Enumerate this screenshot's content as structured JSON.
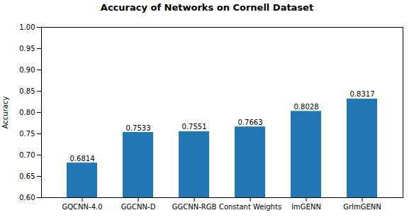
{
  "chart_data": {
    "type": "bar",
    "title": "Accuracy of Networks on Cornell Dataset",
    "ylabel": "Accuracy",
    "categories": [
      "GQCNN-4.0",
      "GGCNN-D",
      "GGCNN-RGB",
      "Constant Weights",
      "ImGENN",
      "GrImGENN"
    ],
    "values": [
      0.6814,
      0.7533,
      0.7551,
      0.7663,
      0.8028,
      0.8317
    ],
    "color": "#2077b4",
    "ylim": [
      0.6,
      1.0
    ],
    "yticks": [
      {
        "value": 0.6,
        "label": "0.60"
      },
      0.65,
      {
        "value": 0.7,
        "label": "0.70"
      },
      0.75,
      {
        "value": 0.8,
        "label": "0.80"
      },
      0.85,
      {
        "value": 0.9,
        "label": "0.90"
      },
      0.95,
      {
        "value": 1.0,
        "label": "1.00"
      }
    ],
    "data_labels": true,
    "grid": false
  }
}
